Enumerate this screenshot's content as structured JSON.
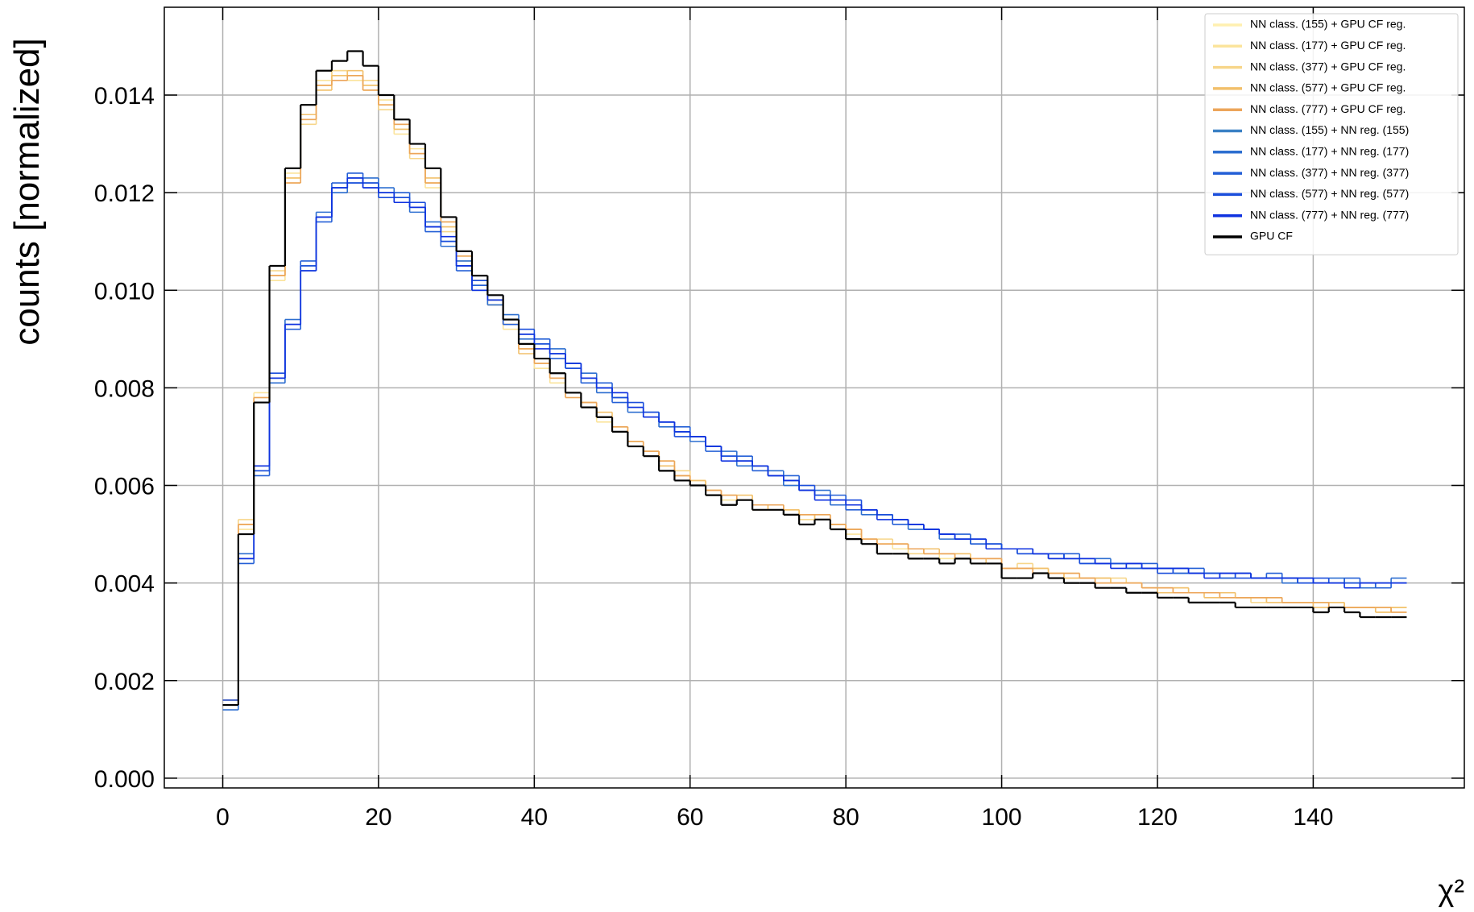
{
  "chart_data": {
    "type": "histogram",
    "xlabel": "χ²",
    "ylabel": "counts [normalized]",
    "xlim": [
      -7.5,
      159.4
    ],
    "ylim": [
      -0.0002,
      0.0158
    ],
    "xticks": [
      0,
      20,
      40,
      60,
      80,
      100,
      120,
      140
    ],
    "yticks": [
      {
        "value": 0,
        "label": "0.000"
      },
      {
        "value": 0.002,
        "label": "0.002"
      },
      {
        "value": 0.004,
        "label": "0.004"
      },
      {
        "value": 0.006,
        "label": "0.006"
      },
      {
        "value": 0.008,
        "label": "0.008"
      },
      {
        "value": 0.01,
        "label": "0.010"
      },
      {
        "value": 0.012,
        "label": "0.012"
      },
      {
        "value": 0.014,
        "label": "0.014"
      }
    ],
    "grid": true,
    "legend": "upper right",
    "bins": [
      0,
      2,
      4,
      6,
      8,
      10,
      12,
      14,
      16,
      18,
      20,
      22,
      24,
      26,
      28,
      30,
      32,
      34,
      36,
      38,
      40,
      42,
      44,
      46,
      48,
      50,
      52,
      54,
      56,
      58,
      60,
      62,
      64,
      66,
      68,
      70,
      72,
      74,
      76,
      78,
      80,
      82,
      84,
      86,
      88,
      90,
      92,
      94,
      96,
      98,
      100,
      102,
      104,
      106,
      108,
      110,
      112,
      114,
      116,
      118,
      120,
      122,
      124,
      126,
      128,
      130,
      132,
      134,
      136,
      138,
      140,
      142,
      144,
      146,
      148,
      150,
      152
    ],
    "series": [
      {
        "name": "NN class. (155) + GPU CF reg.",
        "color": "#fff0b0",
        "values": [
          0.0015,
          0.0052,
          0.0078,
          0.0103,
          0.0123,
          0.0135,
          0.0142,
          0.0144,
          0.0144,
          0.0142,
          0.0138,
          0.0133,
          0.0128,
          0.0122,
          0.0113,
          0.0107,
          0.0102,
          0.0098,
          0.0093,
          0.0088,
          0.0085,
          0.0082,
          0.0079,
          0.0077,
          0.0074,
          0.0072,
          0.0069,
          0.0067,
          0.0065,
          0.0062,
          0.0061,
          0.0059,
          0.0058,
          0.0058,
          0.0056,
          0.0056,
          0.0055,
          0.0054,
          0.0054,
          0.0052,
          0.0051,
          0.0049,
          0.0048,
          0.0048,
          0.0047,
          0.0046,
          0.0046,
          0.0046,
          0.0045,
          0.0045,
          0.0043,
          0.0043,
          0.0043,
          0.0042,
          0.0042,
          0.0041,
          0.0041,
          0.004,
          0.004,
          0.0039,
          0.0039,
          0.0039,
          0.0038,
          0.0038,
          0.0038,
          0.0037,
          0.0037,
          0.0037,
          0.0036,
          0.0036,
          0.0036,
          0.0036,
          0.0035,
          0.0035,
          0.0035,
          0.0035
        ]
      },
      {
        "name": "NN class. (177) + GPU CF reg.",
        "color": "#fbe49c",
        "values": [
          0.0016,
          0.0051,
          0.0079,
          0.0102,
          0.0124,
          0.0136,
          0.0143,
          0.0145,
          0.0143,
          0.0141,
          0.0139,
          0.0132,
          0.0129,
          0.0121,
          0.0114,
          0.0106,
          0.0103,
          0.0097,
          0.0092,
          0.0089,
          0.0084,
          0.0081,
          0.0078,
          0.0077,
          0.0073,
          0.0071,
          0.0069,
          0.0066,
          0.0064,
          0.0062,
          0.006,
          0.0059,
          0.0057,
          0.0057,
          0.0056,
          0.0055,
          0.0054,
          0.0054,
          0.0053,
          0.0052,
          0.005,
          0.0049,
          0.0048,
          0.0047,
          0.0047,
          0.0046,
          0.0045,
          0.0045,
          0.0045,
          0.0044,
          0.0043,
          0.0043,
          0.0042,
          0.0042,
          0.0041,
          0.0041,
          0.004,
          0.004,
          0.004,
          0.0039,
          0.0039,
          0.0038,
          0.0038,
          0.0038,
          0.0037,
          0.0037,
          0.0037,
          0.0036,
          0.0036,
          0.0036,
          0.0036,
          0.0035,
          0.0035,
          0.0035,
          0.0034,
          0.0035
        ]
      },
      {
        "name": "NN class. (377) + GPU CF reg.",
        "color": "#f7d68a",
        "values": [
          0.0015,
          0.0053,
          0.0078,
          0.0104,
          0.0122,
          0.0134,
          0.0142,
          0.0145,
          0.0144,
          0.0143,
          0.0137,
          0.0134,
          0.0127,
          0.0122,
          0.0112,
          0.0107,
          0.0101,
          0.0098,
          0.0094,
          0.0088,
          0.0085,
          0.0083,
          0.0079,
          0.0076,
          0.0074,
          0.0072,
          0.0068,
          0.0067,
          0.0065,
          0.0063,
          0.0061,
          0.0058,
          0.0058,
          0.0057,
          0.0056,
          0.0056,
          0.0055,
          0.0053,
          0.0054,
          0.0051,
          0.0051,
          0.0049,
          0.0049,
          0.0048,
          0.0046,
          0.0046,
          0.0046,
          0.0045,
          0.0045,
          0.0045,
          0.0043,
          0.0044,
          0.0043,
          0.0042,
          0.0042,
          0.0041,
          0.0041,
          0.0041,
          0.004,
          0.0039,
          0.0039,
          0.0039,
          0.0038,
          0.0038,
          0.0038,
          0.0037,
          0.0036,
          0.0037,
          0.0036,
          0.0036,
          0.0036,
          0.0036,
          0.0035,
          0.0035,
          0.0035,
          0.0034
        ]
      },
      {
        "name": "NN class. (577) + GPU CF reg.",
        "color": "#f2c06c",
        "values": [
          0.0015,
          0.0052,
          0.0077,
          0.0103,
          0.0123,
          0.0136,
          0.0141,
          0.0144,
          0.0145,
          0.0142,
          0.0138,
          0.0133,
          0.0128,
          0.0123,
          0.0113,
          0.0108,
          0.0102,
          0.0097,
          0.0093,
          0.0087,
          0.0086,
          0.0082,
          0.0079,
          0.0077,
          0.0075,
          0.0071,
          0.0069,
          0.0067,
          0.0064,
          0.0062,
          0.0061,
          0.0059,
          0.0058,
          0.0058,
          0.0055,
          0.0056,
          0.0055,
          0.0054,
          0.0053,
          0.0052,
          0.0051,
          0.0049,
          0.0048,
          0.0048,
          0.0047,
          0.0047,
          0.0046,
          0.0046,
          0.0044,
          0.0045,
          0.0043,
          0.0043,
          0.0043,
          0.0042,
          0.0041,
          0.0041,
          0.0041,
          0.004,
          0.004,
          0.0039,
          0.0038,
          0.0039,
          0.0038,
          0.0037,
          0.0038,
          0.0037,
          0.0037,
          0.0036,
          0.0036,
          0.0036,
          0.0035,
          0.0036,
          0.0035,
          0.0035,
          0.0034,
          0.0035
        ]
      },
      {
        "name": "NN class. (777) + GPU CF reg.",
        "color": "#eca55a",
        "values": [
          0.0016,
          0.0052,
          0.0078,
          0.0103,
          0.0122,
          0.0135,
          0.0142,
          0.0143,
          0.0144,
          0.0141,
          0.0138,
          0.0134,
          0.0128,
          0.0122,
          0.0114,
          0.0107,
          0.0102,
          0.0098,
          0.0093,
          0.0088,
          0.0085,
          0.0082,
          0.0078,
          0.0077,
          0.0074,
          0.0072,
          0.0069,
          0.0067,
          0.0065,
          0.0062,
          0.006,
          0.0059,
          0.0058,
          0.0057,
          0.0056,
          0.0056,
          0.0054,
          0.0054,
          0.0054,
          0.0052,
          0.0051,
          0.0049,
          0.0048,
          0.0048,
          0.0047,
          0.0046,
          0.0046,
          0.0045,
          0.0045,
          0.0045,
          0.0043,
          0.0043,
          0.0042,
          0.0042,
          0.0042,
          0.0041,
          0.004,
          0.004,
          0.004,
          0.0039,
          0.0039,
          0.0038,
          0.0038,
          0.0038,
          0.0037,
          0.0037,
          0.0037,
          0.0037,
          0.0036,
          0.0036,
          0.0036,
          0.0035,
          0.0035,
          0.0035,
          0.0035,
          0.0034
        ]
      },
      {
        "name": "NN class. (155) + NN reg. (155)",
        "color": "#3a80c4",
        "values": [
          0.0015,
          0.0045,
          0.0063,
          0.0082,
          0.0093,
          0.0105,
          0.0115,
          0.0121,
          0.0123,
          0.0122,
          0.012,
          0.0119,
          0.0117,
          0.0113,
          0.011,
          0.0105,
          0.0101,
          0.0098,
          0.0094,
          0.0091,
          0.0089,
          0.0087,
          0.0085,
          0.0082,
          0.008,
          0.0078,
          0.0076,
          0.0075,
          0.0073,
          0.0071,
          0.007,
          0.0068,
          0.0066,
          0.0065,
          0.0064,
          0.0062,
          0.0061,
          0.0059,
          0.0058,
          0.0057,
          0.0056,
          0.0055,
          0.0054,
          0.0053,
          0.0052,
          0.0051,
          0.005,
          0.0049,
          0.0049,
          0.0048,
          0.0047,
          0.0047,
          0.0046,
          0.0046,
          0.0045,
          0.0045,
          0.0044,
          0.0044,
          0.0044,
          0.0043,
          0.0043,
          0.0043,
          0.0042,
          0.0042,
          0.0042,
          0.0042,
          0.0041,
          0.0041,
          0.0041,
          0.0041,
          0.004,
          0.004,
          0.004,
          0.004,
          0.004,
          0.004
        ]
      },
      {
        "name": "NN class. (177) + NN reg. (177)",
        "color": "#2c6ed0",
        "values": [
          0.0014,
          0.0046,
          0.0064,
          0.0081,
          0.0094,
          0.0104,
          0.0116,
          0.012,
          0.0122,
          0.0123,
          0.0121,
          0.0118,
          0.0116,
          0.0114,
          0.0109,
          0.0106,
          0.01,
          0.0097,
          0.0095,
          0.009,
          0.0089,
          0.0088,
          0.0084,
          0.0083,
          0.0079,
          0.0078,
          0.0075,
          0.0075,
          0.0072,
          0.0071,
          0.0069,
          0.0068,
          0.0067,
          0.0064,
          0.0064,
          0.0063,
          0.006,
          0.0059,
          0.0059,
          0.0056,
          0.0056,
          0.0054,
          0.0054,
          0.0053,
          0.0051,
          0.0051,
          0.0049,
          0.0049,
          0.0048,
          0.0048,
          0.0047,
          0.0046,
          0.0046,
          0.0045,
          0.0045,
          0.0044,
          0.0045,
          0.0044,
          0.0043,
          0.0043,
          0.0043,
          0.0042,
          0.0042,
          0.0042,
          0.0041,
          0.0042,
          0.0041,
          0.0041,
          0.004,
          0.0041,
          0.004,
          0.0041,
          0.004,
          0.0039,
          0.004,
          0.0041
        ]
      },
      {
        "name": "NN class. (377) + NN reg. (377)",
        "color": "#235fd6",
        "values": [
          0.0015,
          0.0044,
          0.0062,
          0.0082,
          0.0092,
          0.0106,
          0.0114,
          0.0122,
          0.0124,
          0.0121,
          0.012,
          0.012,
          0.0117,
          0.0112,
          0.011,
          0.0104,
          0.0101,
          0.0099,
          0.0093,
          0.0091,
          0.009,
          0.0086,
          0.0085,
          0.0081,
          0.0081,
          0.0077,
          0.0076,
          0.0074,
          0.0073,
          0.0072,
          0.007,
          0.0067,
          0.0066,
          0.0066,
          0.0063,
          0.0062,
          0.0062,
          0.0059,
          0.0058,
          0.0058,
          0.0055,
          0.0055,
          0.0054,
          0.0052,
          0.0052,
          0.0051,
          0.005,
          0.005,
          0.0048,
          0.0048,
          0.0047,
          0.0047,
          0.0046,
          0.0045,
          0.0046,
          0.0045,
          0.0044,
          0.0044,
          0.0043,
          0.0044,
          0.0043,
          0.0042,
          0.0043,
          0.0042,
          0.0041,
          0.0042,
          0.0041,
          0.0042,
          0.0041,
          0.004,
          0.004,
          0.004,
          0.0041,
          0.004,
          0.0039,
          0.004
        ]
      },
      {
        "name": "NN class. (577) + NN reg. (577)",
        "color": "#1a4edc",
        "values": [
          0.0016,
          0.0045,
          0.0063,
          0.0083,
          0.0093,
          0.0105,
          0.0115,
          0.0121,
          0.0122,
          0.0122,
          0.0119,
          0.0119,
          0.0118,
          0.0113,
          0.011,
          0.0105,
          0.0102,
          0.0098,
          0.0094,
          0.0092,
          0.0089,
          0.0087,
          0.0084,
          0.0082,
          0.008,
          0.0078,
          0.0077,
          0.0075,
          0.0073,
          0.007,
          0.007,
          0.0068,
          0.0066,
          0.0065,
          0.0064,
          0.0062,
          0.0061,
          0.006,
          0.0058,
          0.0057,
          0.0057,
          0.0055,
          0.0054,
          0.0053,
          0.0052,
          0.0051,
          0.005,
          0.0049,
          0.0049,
          0.0048,
          0.0047,
          0.0046,
          0.0046,
          0.0046,
          0.0045,
          0.0044,
          0.0044,
          0.0044,
          0.0044,
          0.0043,
          0.0042,
          0.0043,
          0.0042,
          0.0042,
          0.0042,
          0.0041,
          0.0041,
          0.0041,
          0.0041,
          0.004,
          0.0041,
          0.004,
          0.004,
          0.004,
          0.004,
          0.004
        ]
      },
      {
        "name": "NN class. (777) + NN reg. (777)",
        "color": "#0f32e0",
        "values": [
          0.0015,
          0.0045,
          0.0064,
          0.0082,
          0.0093,
          0.0104,
          0.0115,
          0.0121,
          0.0123,
          0.0121,
          0.012,
          0.0118,
          0.0117,
          0.0113,
          0.0111,
          0.0105,
          0.01,
          0.0098,
          0.0094,
          0.0091,
          0.0088,
          0.0087,
          0.0085,
          0.0082,
          0.008,
          0.0079,
          0.0076,
          0.0074,
          0.0073,
          0.0071,
          0.007,
          0.0068,
          0.0065,
          0.0065,
          0.0064,
          0.0062,
          0.0061,
          0.0059,
          0.0057,
          0.0057,
          0.0056,
          0.0055,
          0.0053,
          0.0053,
          0.0052,
          0.0051,
          0.005,
          0.0049,
          0.0049,
          0.0047,
          0.0047,
          0.0047,
          0.0046,
          0.0045,
          0.0045,
          0.0045,
          0.0044,
          0.0043,
          0.0044,
          0.0043,
          0.0043,
          0.0043,
          0.0042,
          0.0041,
          0.0042,
          0.0042,
          0.0041,
          0.0041,
          0.0041,
          0.0041,
          0.004,
          0.004,
          0.0039,
          0.004,
          0.004,
          0.004
        ]
      },
      {
        "name": "GPU CF",
        "color": "#000000",
        "values": [
          0.0015,
          0.005,
          0.0077,
          0.0105,
          0.0125,
          0.0138,
          0.0145,
          0.0147,
          0.0149,
          0.0146,
          0.014,
          0.0135,
          0.013,
          0.0125,
          0.0115,
          0.0108,
          0.0103,
          0.0099,
          0.0094,
          0.0089,
          0.0086,
          0.0083,
          0.0079,
          0.0076,
          0.0074,
          0.0071,
          0.0068,
          0.0066,
          0.0063,
          0.0061,
          0.006,
          0.0058,
          0.0056,
          0.0057,
          0.0055,
          0.0055,
          0.0054,
          0.0052,
          0.0053,
          0.0051,
          0.0049,
          0.0048,
          0.0046,
          0.0046,
          0.0045,
          0.0045,
          0.0044,
          0.0045,
          0.0044,
          0.0044,
          0.0041,
          0.0041,
          0.0042,
          0.0041,
          0.004,
          0.004,
          0.0039,
          0.0039,
          0.0038,
          0.0038,
          0.0037,
          0.0037,
          0.0036,
          0.0036,
          0.0036,
          0.0035,
          0.0035,
          0.0035,
          0.0035,
          0.0035,
          0.0034,
          0.0035,
          0.0034,
          0.0033,
          0.0033,
          0.0033
        ]
      }
    ]
  }
}
